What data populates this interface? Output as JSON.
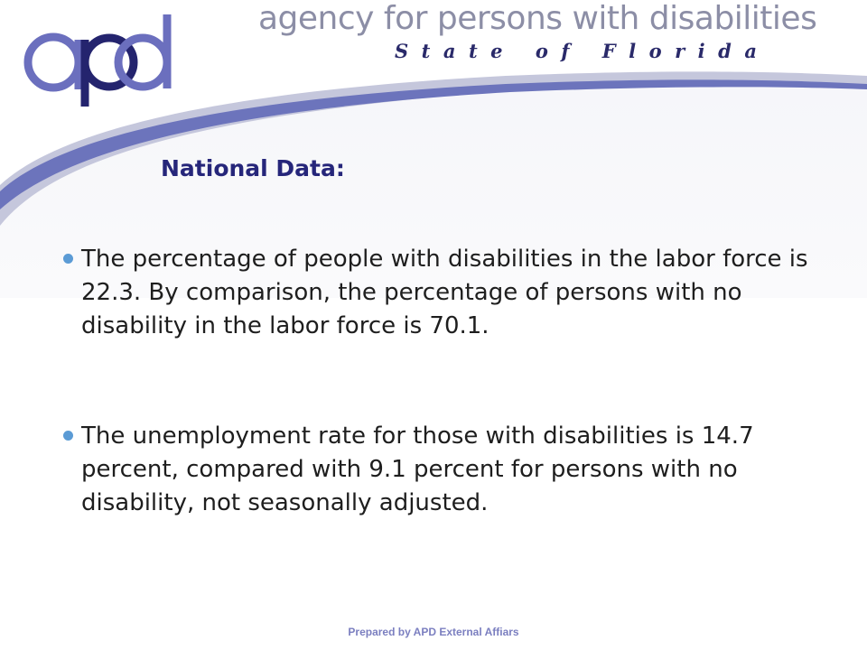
{
  "header": {
    "logo_text": "apd",
    "agency_name": "agency for persons with disabilities",
    "state_name": "State of Florida"
  },
  "colors": {
    "swoosh_light": "#c5c7dc",
    "swoosh_dark": "#6c74bc",
    "logo_purple": "#6b6fbe",
    "logo_navy": "#24246e",
    "title": "#26267a",
    "bullet": "#5b9bd5"
  },
  "content": {
    "section_title": "National Data:",
    "bullets": [
      "The percentage of people with disabilities in the labor force is 22.3. By comparison, the percentage of persons with no disability in the labor force is 70.1.",
      "The unemployment rate for those with disabilities is 14.7 percent,  compared with 9.1 percent for persons with no disability, not seasonally adjusted."
    ]
  },
  "footer": {
    "text": "Prepared by APD External Affiars"
  }
}
